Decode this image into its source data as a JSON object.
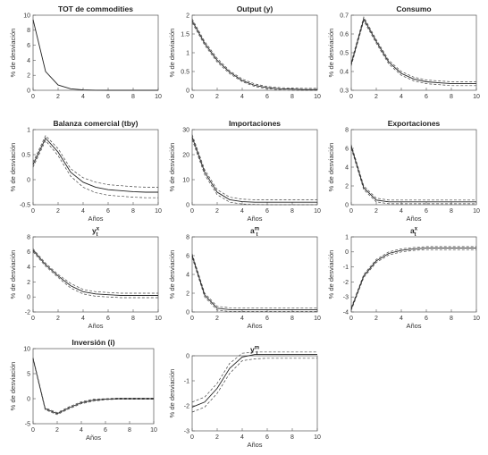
{
  "chart_data": [
    {
      "type": "line",
      "title": "TOT de commodities",
      "xlabel": "",
      "ylabel": "% de desviación",
      "xlim": [
        0,
        10
      ],
      "ylim": [
        0,
        10
      ],
      "xticks": [
        "0",
        "2",
        "4",
        "6",
        "8",
        "10"
      ],
      "yticks": [
        "0",
        "2",
        "4",
        "6",
        "8",
        "10"
      ],
      "bands": false,
      "x": [
        0,
        1,
        2,
        3,
        4,
        5,
        6,
        7,
        8,
        9,
        10
      ],
      "series": [
        {
          "values": [
            9.4,
            2.5,
            0.7,
            0.2,
            0.05,
            0.01,
            0,
            0,
            0,
            0,
            0
          ]
        }
      ]
    },
    {
      "type": "line",
      "title": "Output (y)",
      "xlabel": "",
      "ylabel": "% de desviación",
      "xlim": [
        0,
        10
      ],
      "ylim": [
        0,
        2
      ],
      "xticks": [
        "0",
        "2",
        "4",
        "6",
        "8",
        "10"
      ],
      "yticks": [
        "0",
        "0.5",
        "1",
        "1.5",
        "2"
      ],
      "bands": true,
      "x": [
        0,
        1,
        2,
        3,
        4,
        5,
        6,
        7,
        8,
        9,
        10
      ],
      "series": [
        {
          "values": [
            1.85,
            1.25,
            0.8,
            0.48,
            0.26,
            0.13,
            0.07,
            0.04,
            0.03,
            0.02,
            0.02
          ]
        },
        {
          "values": [
            1.8,
            1.2,
            0.75,
            0.44,
            0.23,
            0.1,
            0.04,
            0.01,
            0,
            0,
            0
          ]
        },
        {
          "values": [
            1.9,
            1.3,
            0.85,
            0.52,
            0.3,
            0.17,
            0.1,
            0.07,
            0.06,
            0.05,
            0.05
          ]
        }
      ]
    },
    {
      "type": "line",
      "title": "Consumo",
      "xlabel": "",
      "ylabel": "% de desviación",
      "xlim": [
        0,
        10
      ],
      "ylim": [
        0.3,
        0.7
      ],
      "xticks": [
        "0",
        "2",
        "4",
        "6",
        "8",
        "10"
      ],
      "yticks": [
        "0.3",
        "0.4",
        "0.5",
        "0.6",
        "0.7"
      ],
      "bands": true,
      "x": [
        0,
        1,
        2,
        3,
        4,
        5,
        6,
        7,
        8,
        9,
        10
      ],
      "series": [
        {
          "values": [
            0.44,
            0.68,
            0.56,
            0.45,
            0.39,
            0.36,
            0.345,
            0.34,
            0.335,
            0.335,
            0.335
          ]
        },
        {
          "values": [
            0.43,
            0.67,
            0.55,
            0.44,
            0.38,
            0.35,
            0.335,
            0.33,
            0.325,
            0.325,
            0.325
          ]
        },
        {
          "values": [
            0.45,
            0.69,
            0.57,
            0.46,
            0.4,
            0.37,
            0.355,
            0.35,
            0.345,
            0.345,
            0.345
          ]
        }
      ]
    },
    {
      "type": "line",
      "title": "Balanza comercial (tby)",
      "xlabel": "Años",
      "ylabel": "% de desviación",
      "xlim": [
        0,
        10
      ],
      "ylim": [
        -0.5,
        1
      ],
      "xticks": [
        "0",
        "2",
        "4",
        "6",
        "8",
        "10"
      ],
      "yticks": [
        "-0.5",
        "0",
        "0.5",
        "1"
      ],
      "bands": true,
      "x": [
        0,
        1,
        2,
        3,
        4,
        5,
        6,
        7,
        8,
        9,
        10
      ],
      "series": [
        {
          "values": [
            0.3,
            0.83,
            0.55,
            0.15,
            -0.05,
            -0.15,
            -0.2,
            -0.22,
            -0.24,
            -0.25,
            -0.25
          ]
        },
        {
          "values": [
            0.25,
            0.78,
            0.48,
            0.07,
            -0.15,
            -0.26,
            -0.31,
            -0.33,
            -0.35,
            -0.36,
            -0.36
          ]
        },
        {
          "values": [
            0.35,
            0.88,
            0.62,
            0.22,
            0.04,
            -0.05,
            -0.1,
            -0.12,
            -0.14,
            -0.15,
            -0.15
          ]
        }
      ]
    },
    {
      "type": "line",
      "title": "Importaciones",
      "xlabel": "Años",
      "ylabel": "% de desviación",
      "xlim": [
        0,
        10
      ],
      "ylim": [
        0,
        30
      ],
      "xticks": [
        "0",
        "2",
        "4",
        "6",
        "8",
        "10"
      ],
      "yticks": [
        "0",
        "10",
        "20",
        "30"
      ],
      "bands": true,
      "x": [
        0,
        1,
        2,
        3,
        4,
        5,
        6,
        7,
        8,
        9,
        10
      ],
      "series": [
        {
          "values": [
            27,
            13,
            5,
            2,
            1.2,
            1,
            1,
            1,
            1,
            1,
            1
          ]
        },
        {
          "values": [
            26,
            12,
            4,
            1,
            0.3,
            0.1,
            0,
            0,
            0,
            0,
            0
          ]
        },
        {
          "values": [
            28,
            14,
            6,
            3,
            2.2,
            2,
            2,
            2,
            2,
            2,
            2
          ]
        }
      ]
    },
    {
      "type": "line",
      "title": "Exportaciones",
      "xlabel": "Años",
      "ylabel": "% de desviación",
      "xlim": [
        0,
        10
      ],
      "ylim": [
        0,
        8
      ],
      "xticks": [
        "0",
        "2",
        "4",
        "6",
        "8",
        "10"
      ],
      "yticks": [
        "0",
        "2",
        "4",
        "6",
        "8"
      ],
      "bands": true,
      "x": [
        0,
        1,
        2,
        3,
        4,
        5,
        6,
        7,
        8,
        9,
        10
      ],
      "series": [
        {
          "values": [
            6.2,
            1.8,
            0.5,
            0.3,
            0.3,
            0.3,
            0.3,
            0.3,
            0.3,
            0.3,
            0.3
          ]
        },
        {
          "values": [
            6,
            1.6,
            0.3,
            0.1,
            0.1,
            0.1,
            0.1,
            0.1,
            0.1,
            0.1,
            0.1
          ]
        },
        {
          "values": [
            6.4,
            2,
            0.7,
            0.5,
            0.5,
            0.5,
            0.5,
            0.5,
            0.5,
            0.5,
            0.5
          ]
        }
      ]
    },
    {
      "type": "line",
      "title": "y",
      "title_sup": "x",
      "title_sub": "t",
      "xlabel": "Años",
      "ylabel": "% de desviación",
      "xlim": [
        0,
        10
      ],
      "ylim": [
        -2,
        8
      ],
      "xticks": [
        "0",
        "2",
        "4",
        "6",
        "8",
        "10"
      ],
      "yticks": [
        "-2",
        "0",
        "2",
        "4",
        "6",
        "8"
      ],
      "bands": true,
      "x": [
        0,
        1,
        2,
        3,
        4,
        5,
        6,
        7,
        8,
        9,
        10
      ],
      "series": [
        {
          "values": [
            6.2,
            4.3,
            2.8,
            1.5,
            0.7,
            0.4,
            0.3,
            0.2,
            0.2,
            0.2,
            0.2
          ]
        },
        {
          "values": [
            6,
            4.1,
            2.6,
            1.2,
            0.4,
            0.1,
            0,
            -0.1,
            -0.1,
            -0.1,
            -0.1
          ]
        },
        {
          "values": [
            6.4,
            4.5,
            3,
            1.8,
            1,
            0.7,
            0.6,
            0.5,
            0.5,
            0.5,
            0.5
          ]
        }
      ]
    },
    {
      "type": "line",
      "title": "a",
      "title_sup": "m",
      "title_sub": "t",
      "xlabel": "Años",
      "ylabel": "% de desviación",
      "xlim": [
        0,
        10
      ],
      "ylim": [
        0,
        8
      ],
      "xticks": [
        "0",
        "2",
        "4",
        "6",
        "8",
        "10"
      ],
      "yticks": [
        "0",
        "2",
        "4",
        "6",
        "8"
      ],
      "bands": true,
      "x": [
        0,
        1,
        2,
        3,
        4,
        5,
        6,
        7,
        8,
        9,
        10
      ],
      "series": [
        {
          "values": [
            6,
            1.8,
            0.4,
            0.25,
            0.25,
            0.25,
            0.25,
            0.25,
            0.25,
            0.25,
            0.25
          ]
        },
        {
          "values": [
            5.8,
            1.6,
            0.2,
            0.05,
            0.05,
            0.05,
            0.05,
            0.05,
            0.05,
            0.05,
            0.05
          ]
        },
        {
          "values": [
            6.2,
            2,
            0.6,
            0.45,
            0.45,
            0.45,
            0.45,
            0.45,
            0.45,
            0.45,
            0.45
          ]
        }
      ]
    },
    {
      "type": "line",
      "title": "a",
      "title_sup": "x",
      "title_sub": "t",
      "xlabel": "Años",
      "ylabel": "% de desviación",
      "xlim": [
        0,
        10
      ],
      "ylim": [
        -4,
        1
      ],
      "xticks": [
        "0",
        "2",
        "4",
        "6",
        "8",
        "10"
      ],
      "yticks": [
        "-4",
        "-3",
        "-2",
        "-1",
        "0",
        "1"
      ],
      "bands": true,
      "x": [
        0,
        1,
        2,
        3,
        4,
        5,
        6,
        7,
        8,
        9,
        10
      ],
      "series": [
        {
          "values": [
            -3.8,
            -1.6,
            -0.6,
            -0.1,
            0.1,
            0.2,
            0.25,
            0.25,
            0.25,
            0.25,
            0.25
          ]
        },
        {
          "values": [
            -3.9,
            -1.7,
            -0.7,
            -0.2,
            0,
            0.1,
            0.15,
            0.15,
            0.15,
            0.15,
            0.15
          ]
        },
        {
          "values": [
            -3.7,
            -1.5,
            -0.5,
            0,
            0.2,
            0.3,
            0.35,
            0.35,
            0.35,
            0.35,
            0.35
          ]
        }
      ]
    },
    {
      "type": "line",
      "title": "Inversión (i)",
      "xlabel": "Años",
      "ylabel": "% de desviación",
      "xlim": [
        0,
        10
      ],
      "ylim": [
        -5,
        10
      ],
      "xticks": [
        "0",
        "2",
        "4",
        "6",
        "8",
        "10"
      ],
      "yticks": [
        "-5",
        "0",
        "5",
        "10"
      ],
      "bands": true,
      "x": [
        0,
        1,
        2,
        3,
        4,
        5,
        6,
        7,
        8,
        9,
        10
      ],
      "series": [
        {
          "values": [
            8,
            -2,
            -3,
            -1.8,
            -0.8,
            -0.3,
            -0.1,
            0,
            0,
            0,
            0
          ]
        },
        {
          "values": [
            7.8,
            -2.2,
            -3.2,
            -2,
            -1,
            -0.5,
            -0.2,
            -0.1,
            -0.1,
            -0.1,
            -0.1
          ]
        },
        {
          "values": [
            8.2,
            -1.8,
            -2.8,
            -1.6,
            -0.6,
            -0.1,
            0,
            0.1,
            0.1,
            0.1,
            0.1
          ]
        }
      ]
    },
    {
      "type": "line",
      "title": "y",
      "title_sup": "m",
      "title_sub": "t",
      "xlabel": "Años",
      "ylabel": "% de desviación",
      "xlim": [
        0,
        10
      ],
      "ylim": [
        -3,
        0
      ],
      "xticks": [
        "0",
        "2",
        "4",
        "6",
        "8",
        "10"
      ],
      "yticks": [
        "-3",
        "-2",
        "-1",
        "0"
      ],
      "bands": true,
      "x": [
        0,
        1,
        2,
        3,
        4,
        5,
        6,
        7,
        8,
        9,
        10
      ],
      "series": [
        {
          "values": [
            -2.05,
            -1.85,
            -1.3,
            -0.5,
            -0.05,
            0.05,
            0.05,
            0.05,
            0.05,
            0.05,
            0.05
          ]
        },
        {
          "values": [
            -2.25,
            -2.05,
            -1.5,
            -0.7,
            -0.2,
            -0.12,
            -0.1,
            -0.1,
            -0.1,
            -0.1,
            -0.1
          ]
        },
        {
          "values": [
            -1.85,
            -1.65,
            -1.1,
            -0.3,
            0.1,
            0.15,
            0.15,
            0.15,
            0.15,
            0.15,
            0.15
          ]
        }
      ]
    }
  ]
}
